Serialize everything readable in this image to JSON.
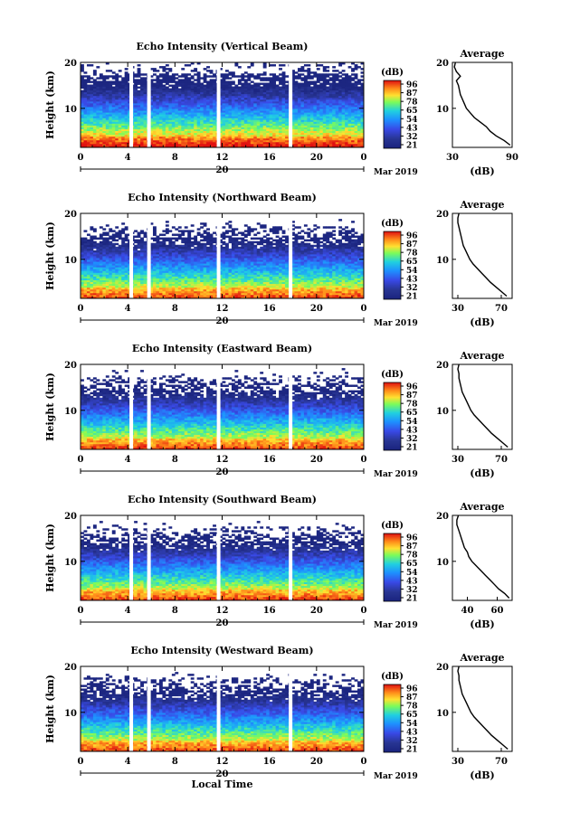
{
  "figure": {
    "ylabel": "Height (km)",
    "colorbar_unit": "(dB)",
    "colorbar_ticks": [
      "96",
      "87",
      "78",
      "65",
      "54",
      "43",
      "32",
      "21"
    ],
    "x_ticks": [
      "0",
      "4",
      "8",
      "12",
      "16",
      "20",
      "0"
    ],
    "day_label": "20",
    "month_label": "Mar 2019",
    "bottom_xlabel": "Local Time",
    "avg_title": "Average",
    "avg_xlabel": "(dB)",
    "y_ticks": [
      "20",
      "10"
    ]
  },
  "panels": [
    {
      "title": "Echo Intensity (Vertical Beam)",
      "avg_ticks": [
        "30",
        "90"
      ]
    },
    {
      "title": "Echo Intensity (Northward Beam)",
      "avg_ticks": [
        "30",
        "70"
      ]
    },
    {
      "title": "Echo Intensity (Eastward Beam)",
      "avg_ticks": [
        "30",
        "70"
      ]
    },
    {
      "title": "Echo Intensity (Southward Beam)",
      "avg_ticks": [
        "40",
        "60"
      ]
    },
    {
      "title": "Echo Intensity (Westward Beam)",
      "avg_ticks": [
        "30",
        "70"
      ]
    }
  ],
  "chart_data": [
    {
      "type": "heatmap",
      "title": "Echo Intensity (Vertical Beam)",
      "xlabel": "Local Time",
      "ylabel": "Height (km)",
      "xlim": [
        0,
        24
      ],
      "ylim": [
        1.5,
        20
      ],
      "colorbar": {
        "label": "(dB)",
        "ticks": [
          96,
          87,
          78,
          65,
          54,
          43,
          32,
          21
        ]
      },
      "data_gaps_hours": [
        4.3,
        5.8,
        11.7,
        17.8
      ],
      "average_profile": {
        "title": "Average",
        "xlabel": "(dB)",
        "xlim": [
          30,
          90
        ],
        "xticks": [
          30,
          90
        ],
        "height_km": [
          2,
          3,
          4,
          5,
          6,
          7,
          8,
          9,
          10,
          11,
          12,
          13,
          14,
          15,
          16,
          17,
          18,
          19,
          20
        ],
        "value_db": [
          88,
          82,
          74,
          68,
          64,
          58,
          52,
          48,
          44,
          42,
          40,
          38,
          37,
          36,
          34,
          38,
          34,
          32,
          33
        ]
      }
    },
    {
      "type": "heatmap",
      "title": "Echo Intensity (Northward Beam)",
      "xlabel": "Local Time",
      "ylabel": "Height (km)",
      "xlim": [
        0,
        24
      ],
      "ylim": [
        1.5,
        20
      ],
      "colorbar": {
        "label": "(dB)",
        "ticks": [
          96,
          87,
          78,
          65,
          54,
          43,
          32,
          21
        ]
      },
      "data_gaps_hours": [
        4.3,
        5.8,
        11.7,
        17.8
      ],
      "average_profile": {
        "title": "Average",
        "xlabel": "(dB)",
        "xlim": [
          25,
          80
        ],
        "xticks": [
          30,
          70
        ],
        "height_km": [
          2,
          3,
          4,
          5,
          6,
          7,
          8,
          9,
          10,
          11,
          12,
          13,
          14,
          15,
          16,
          17,
          18,
          19,
          20
        ],
        "value_db": [
          75,
          70,
          65,
          60,
          56,
          52,
          48,
          44,
          41,
          39,
          37,
          35,
          34,
          33,
          32,
          31,
          30,
          30,
          31
        ]
      }
    },
    {
      "type": "heatmap",
      "title": "Echo Intensity (Eastward Beam)",
      "xlabel": "Local Time",
      "ylabel": "Height (km)",
      "xlim": [
        0,
        24
      ],
      "ylim": [
        1.5,
        20
      ],
      "colorbar": {
        "label": "(dB)",
        "ticks": [
          96,
          87,
          78,
          65,
          54,
          43,
          32,
          21
        ]
      },
      "data_gaps_hours": [
        4.3,
        5.8,
        11.7,
        17.8
      ],
      "average_profile": {
        "title": "Average",
        "xlabel": "(dB)",
        "xlim": [
          25,
          80
        ],
        "xticks": [
          30,
          70
        ],
        "height_km": [
          2,
          3,
          4,
          5,
          6,
          7,
          8,
          9,
          10,
          11,
          12,
          13,
          14,
          15,
          16,
          17,
          18,
          19,
          20
        ],
        "value_db": [
          76,
          71,
          66,
          61,
          57,
          53,
          49,
          45,
          42,
          40,
          38,
          36,
          34,
          33,
          32,
          31,
          31,
          30,
          31
        ]
      }
    },
    {
      "type": "heatmap",
      "title": "Echo Intensity (Southward Beam)",
      "xlabel": "Local Time",
      "ylabel": "Height (km)",
      "xlim": [
        0,
        24
      ],
      "ylim": [
        1.5,
        20
      ],
      "colorbar": {
        "label": "(dB)",
        "ticks": [
          96,
          87,
          78,
          65,
          54,
          43,
          32,
          21
        ]
      },
      "data_gaps_hours": [
        4.3,
        5.8,
        11.7,
        17.8
      ],
      "average_profile": {
        "title": "Average",
        "xlabel": "(dB)",
        "xlim": [
          30,
          70
        ],
        "xticks": [
          40,
          60
        ],
        "height_km": [
          2,
          3,
          4,
          5,
          6,
          7,
          8,
          9,
          10,
          11,
          12,
          13,
          14,
          15,
          16,
          17,
          18,
          19,
          20
        ],
        "value_db": [
          68,
          65,
          61,
          58,
          55,
          52,
          49,
          46,
          43,
          41,
          40,
          38,
          37,
          36,
          35,
          34,
          33,
          33,
          34
        ]
      }
    },
    {
      "type": "heatmap",
      "title": "Echo Intensity (Westward Beam)",
      "xlabel": "Local Time",
      "ylabel": "Height (km)",
      "xlim": [
        0,
        24
      ],
      "ylim": [
        1.5,
        20
      ],
      "colorbar": {
        "label": "(dB)",
        "ticks": [
          96,
          87,
          78,
          65,
          54,
          43,
          32,
          21
        ]
      },
      "data_gaps_hours": [
        4.3,
        5.8,
        11.7,
        17.8
      ],
      "average_profile": {
        "title": "Average",
        "xlabel": "(dB)",
        "xlim": [
          25,
          80
        ],
        "xticks": [
          30,
          70
        ],
        "height_km": [
          2,
          3,
          4,
          5,
          6,
          7,
          8,
          9,
          10,
          11,
          12,
          13,
          14,
          15,
          16,
          17,
          18,
          19,
          20
        ],
        "value_db": [
          76,
          71,
          66,
          61,
          57,
          53,
          49,
          45,
          42,
          40,
          38,
          36,
          34,
          33,
          32,
          31,
          31,
          30,
          31
        ]
      }
    }
  ]
}
